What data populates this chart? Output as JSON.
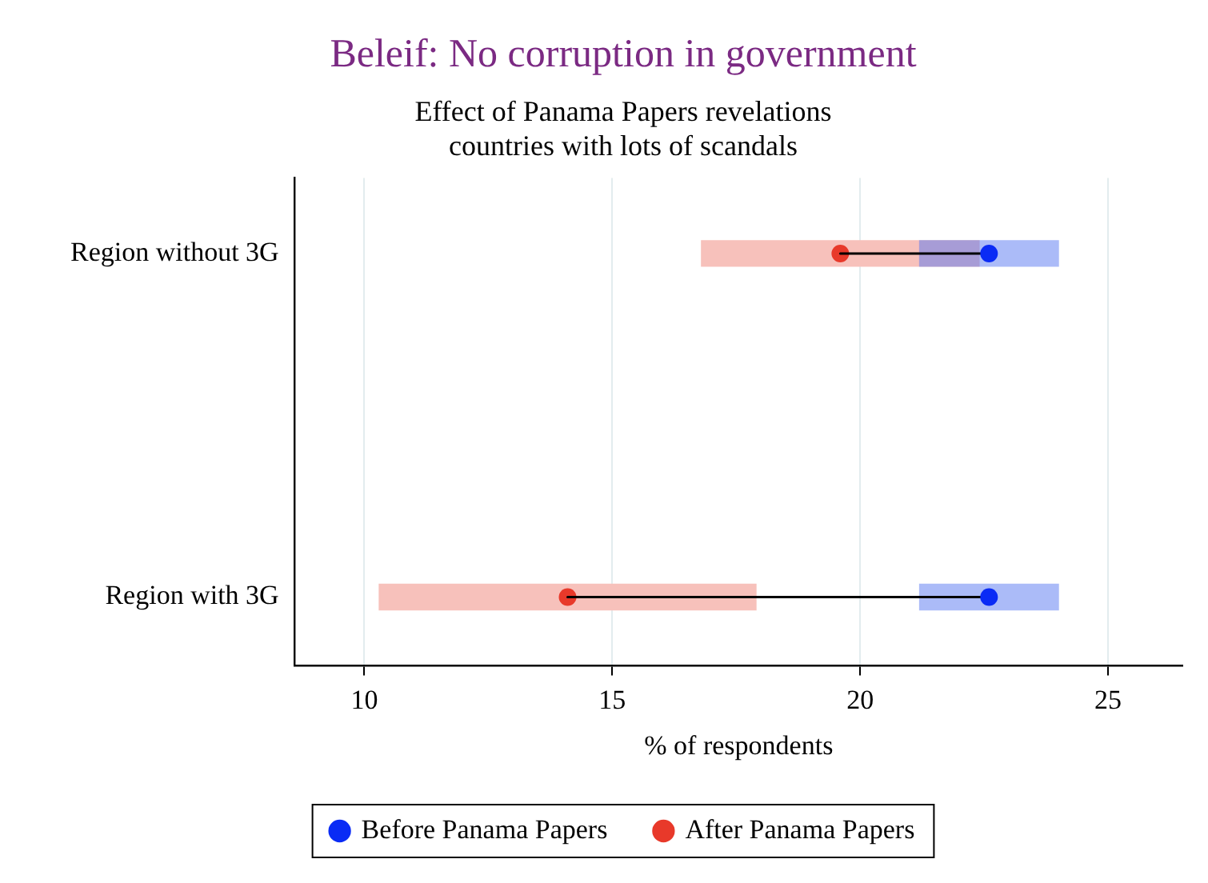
{
  "chart_data": {
    "type": "scatter",
    "orientation": "horizontal",
    "title": "Beleif: No corruption in government",
    "subtitle": "Effect of Panama Papers revelations\ncountries with lots of scandals",
    "xlabel": "% of respondents",
    "categories": [
      "Region without 3G",
      "Region with 3G"
    ],
    "series": [
      {
        "type": "bar",
        "color": "#f7c1bb",
        "base": [
          16.8,
          10.3
        ],
        "values": [
          5.6,
          7.6
        ]
      },
      {
        "type": "bar",
        "color": "#abbbf8",
        "base": [
          21.2,
          21.2
        ],
        "values": [
          2.8,
          2.8
        ]
      },
      {
        "name": "Before Panama Papers",
        "color": "#0a2bf5",
        "values": [
          22.6,
          22.6
        ]
      },
      {
        "name": "After Panama Papers",
        "color": "#e8392a",
        "values": [
          19.6,
          14.1
        ]
      }
    ],
    "xlim": [
      8.6,
      26.5
    ],
    "xticks": [
      10,
      15,
      20,
      25
    ],
    "grid": "x",
    "legend": "bottom",
    "marker": "circle"
  }
}
